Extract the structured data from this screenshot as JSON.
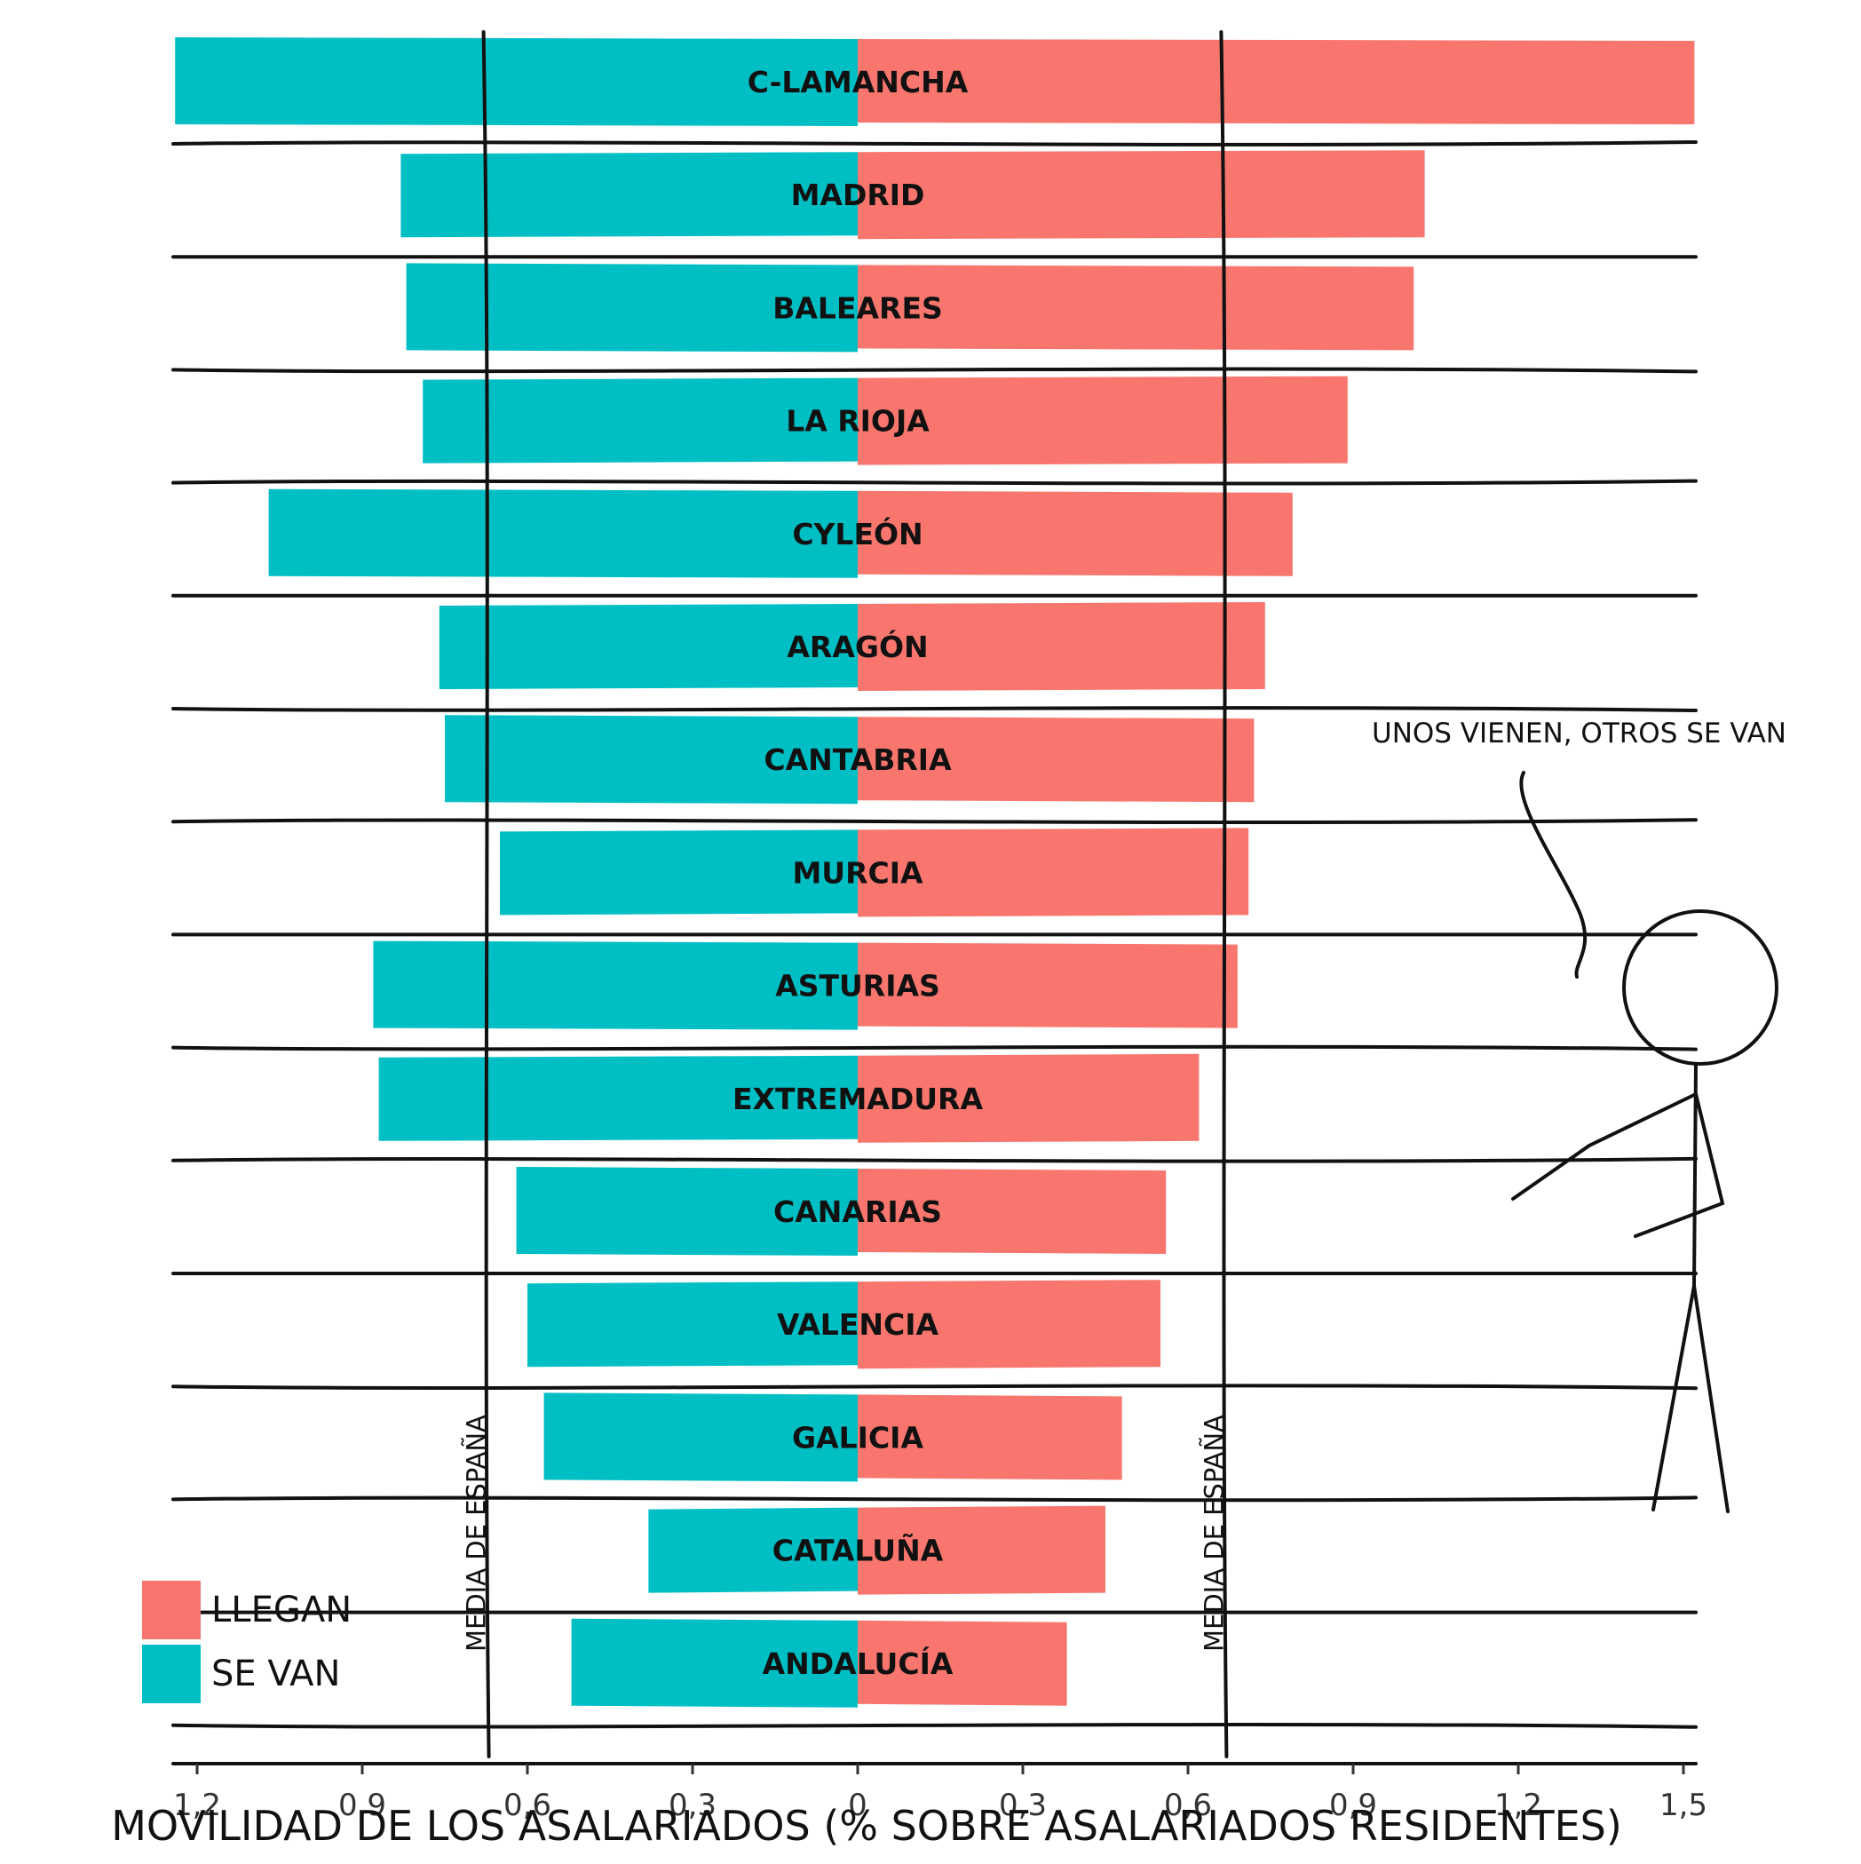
{
  "chart_data": {
    "type": "bar",
    "orientation": "horizontal-diverging",
    "categories": [
      "C-LAMANCHA",
      "MADRID",
      "BALEARES",
      "LA RIOJA",
      "CYLEÓN",
      "ARAGÓN",
      "CANTABRIA",
      "MURCIA",
      "ASTURIAS",
      "EXTREMADURA",
      "CANARIAS",
      "VALENCIA",
      "GALICIA",
      "CATALUÑA",
      "ANDALUCÍA"
    ],
    "series": [
      {
        "name": "LLEGAN",
        "color": "#F8766D",
        "values": [
          1.52,
          1.03,
          1.01,
          0.89,
          0.79,
          0.74,
          0.72,
          0.71,
          0.69,
          0.62,
          0.56,
          0.55,
          0.48,
          0.45,
          0.38
        ]
      },
      {
        "name": "SE VAN",
        "color": "#00BFC4",
        "values": [
          1.24,
          0.83,
          0.82,
          0.79,
          1.07,
          0.76,
          0.75,
          0.65,
          0.88,
          0.87,
          0.62,
          0.6,
          0.57,
          0.38,
          0.52
        ]
      }
    ],
    "xlabel": "MOVILIDAD DE LOS ASALARIADOS (% SOBRE ASALARIADOS RESIDENTES)",
    "xlim_left": [
      1.25,
      0
    ],
    "xlim_right": [
      0,
      1.53
    ],
    "x_ticks_left": [
      "1,2",
      "0,9",
      "0,6",
      "0,3"
    ],
    "x_ticks_left_values": [
      1.2,
      0.9,
      0.6,
      0.3
    ],
    "x_ticks_center": "0",
    "x_ticks_right": [
      "0,3",
      "0,6",
      "0,9",
      "1,2",
      "1,5"
    ],
    "x_ticks_right_values": [
      0.3,
      0.6,
      0.9,
      1.2,
      1.5
    ],
    "reference_lines": [
      {
        "side": "left",
        "value": 0.67,
        "label": "MEDIA DE ESPAÑA"
      },
      {
        "side": "right",
        "value": 0.67,
        "label": "MEDIA DE ESPAÑA"
      }
    ],
    "legend": {
      "position": "bottom-left",
      "items": [
        "LLEGAN",
        "SE VAN"
      ]
    },
    "annotation": "UNOS VIENEN, OTROS SE VAN",
    "grid": false
  }
}
